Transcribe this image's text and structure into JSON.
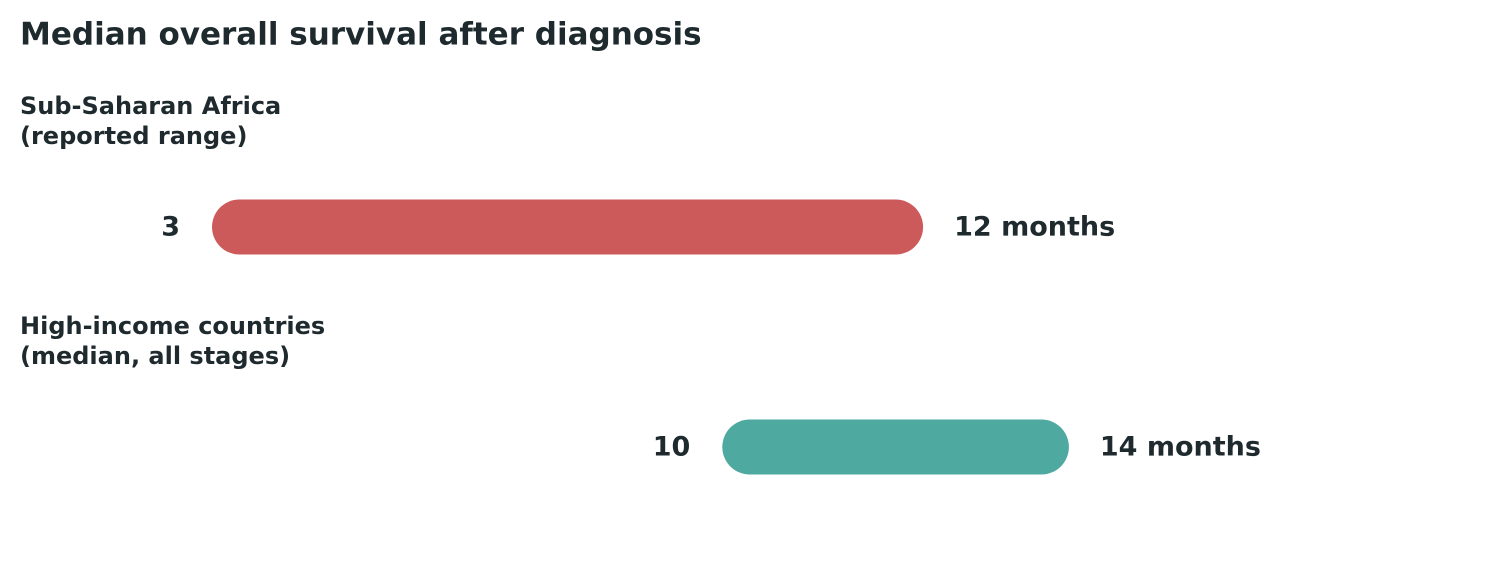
{
  "chart_data": {
    "type": "range",
    "title": "Median overall survival after diagnosis",
    "categories": [
      [
        "Sub-Saharan Africa",
        "(reported range)"
      ],
      [
        "High-income countries",
        "(median, all stages)"
      ]
    ],
    "low": [
      3,
      10
    ],
    "high": [
      12,
      14
    ],
    "high_labels": [
      "12 months",
      "14 months"
    ],
    "colors": [
      "#cd5a5a",
      "#4ea9a0"
    ]
  }
}
